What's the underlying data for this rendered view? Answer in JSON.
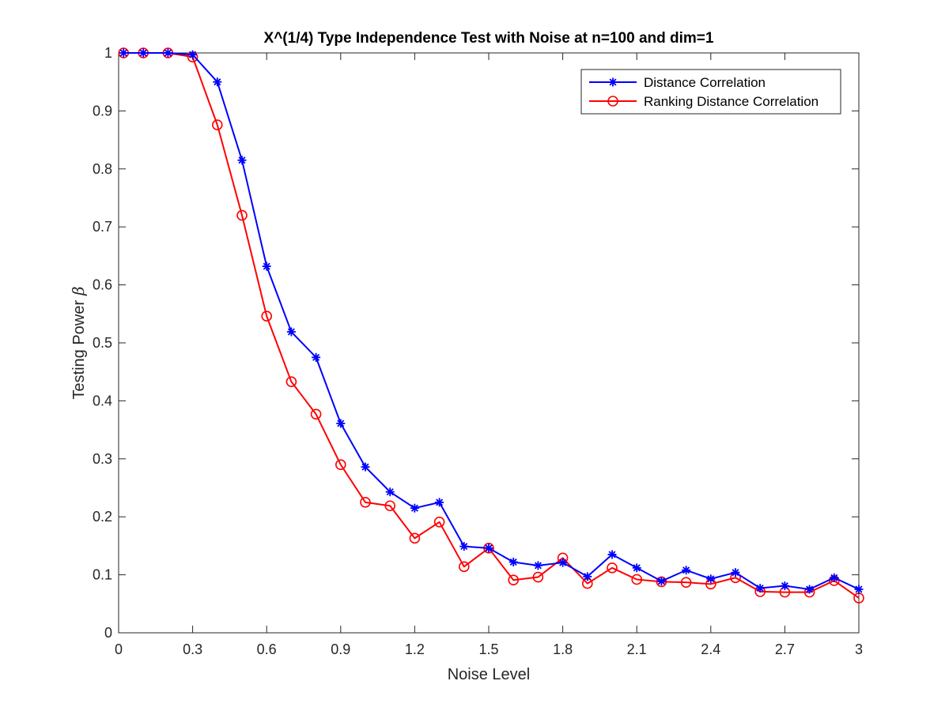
{
  "chart_data": {
    "type": "line",
    "title": "X^(1/4) Type Independence Test with Noise at n=100 and dim=1",
    "xlabel": "Noise Level",
    "ylabel": "Testing Power",
    "ylabel_symbol": "β",
    "xlim": [
      0,
      3
    ],
    "ylim": [
      0,
      1
    ],
    "xticks": [
      "0",
      "0.3",
      "0.6",
      "0.9",
      "1.2",
      "1.5",
      "1.8",
      "2.1",
      "2.4",
      "2.7",
      "3"
    ],
    "yticks": [
      "0",
      "0.1",
      "0.2",
      "0.3",
      "0.4",
      "0.5",
      "0.6",
      "0.7",
      "0.8",
      "0.9",
      "1"
    ],
    "grid": false,
    "legend_position": "top-right",
    "x": [
      0.02,
      0.1,
      0.2,
      0.3,
      0.4,
      0.5,
      0.6,
      0.7,
      0.8,
      0.9,
      1.0,
      1.1,
      1.2,
      1.3,
      1.4,
      1.5,
      1.6,
      1.7,
      1.8,
      1.9,
      2.0,
      2.1,
      2.2,
      2.3,
      2.4,
      2.5,
      2.6,
      2.7,
      2.8,
      2.9,
      3.0
    ],
    "series": [
      {
        "name": "Distance Correlation",
        "color": "#0000ff",
        "marker": "asterisk",
        "values": [
          1.0,
          1.0,
          1.0,
          0.997,
          0.95,
          0.815,
          0.632,
          0.519,
          0.475,
          0.361,
          0.286,
          0.243,
          0.215,
          0.225,
          0.149,
          0.146,
          0.122,
          0.116,
          0.121,
          0.097,
          0.135,
          0.112,
          0.089,
          0.108,
          0.093,
          0.104,
          0.077,
          0.081,
          0.075,
          0.095,
          0.075
        ]
      },
      {
        "name": "Ranking Distance Correlation",
        "color": "#ff0000",
        "marker": "circle",
        "values": [
          1.0,
          1.0,
          1.0,
          0.993,
          0.876,
          0.72,
          0.546,
          0.433,
          0.377,
          0.29,
          0.225,
          0.219,
          0.163,
          0.191,
          0.114,
          0.146,
          0.091,
          0.096,
          0.129,
          0.085,
          0.112,
          0.092,
          0.088,
          0.087,
          0.084,
          0.095,
          0.071,
          0.07,
          0.07,
          0.09,
          0.06
        ]
      }
    ]
  }
}
